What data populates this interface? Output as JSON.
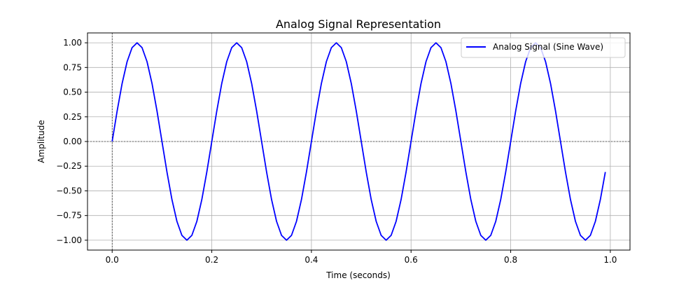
{
  "chart_data": {
    "type": "line",
    "title": "Analog Signal Representation",
    "xlabel": "Time (seconds)",
    "ylabel": "Amplitude",
    "xlim": [
      -0.0495,
      1.0395
    ],
    "ylim": [
      -1.1,
      1.1
    ],
    "x_ticks": [
      0.0,
      0.2,
      0.4,
      0.6,
      0.8,
      1.0
    ],
    "x_tick_labels": [
      "0.0",
      "0.2",
      "0.4",
      "0.6",
      "0.8",
      "1.0"
    ],
    "y_ticks": [
      -1.0,
      -0.75,
      -0.5,
      -0.25,
      0.0,
      0.25,
      0.5,
      0.75,
      1.0
    ],
    "y_tick_labels": [
      "−1.00",
      "−0.75",
      "−0.50",
      "−0.25",
      "0.00",
      "0.25",
      "0.50",
      "0.75",
      "1.00"
    ],
    "grid": true,
    "reference_lines": {
      "x": 0,
      "y": 0,
      "style": "dashed"
    },
    "legend_position": "top-right",
    "series": [
      {
        "name": "Analog Signal (Sine Wave)",
        "color": "#0000ff",
        "x": [
          0.0,
          0.01,
          0.02,
          0.03,
          0.04,
          0.05,
          0.06,
          0.07,
          0.08,
          0.09,
          0.1,
          0.11,
          0.12,
          0.13,
          0.14,
          0.15,
          0.16,
          0.17,
          0.18,
          0.19,
          0.2,
          0.21,
          0.22,
          0.23,
          0.24,
          0.25,
          0.26,
          0.27,
          0.28,
          0.29,
          0.3,
          0.31,
          0.32,
          0.33,
          0.34,
          0.35,
          0.36,
          0.37,
          0.38,
          0.39,
          0.4,
          0.41,
          0.42,
          0.43,
          0.44,
          0.45,
          0.46,
          0.47,
          0.48,
          0.49,
          0.5,
          0.51,
          0.52,
          0.53,
          0.54,
          0.55,
          0.56,
          0.57,
          0.58,
          0.59,
          0.6,
          0.61,
          0.62,
          0.63,
          0.64,
          0.65,
          0.66,
          0.67,
          0.68,
          0.69,
          0.7,
          0.71,
          0.72,
          0.73,
          0.74,
          0.75,
          0.76,
          0.77,
          0.78,
          0.79,
          0.8,
          0.81,
          0.82,
          0.83,
          0.84,
          0.85,
          0.86,
          0.87,
          0.88,
          0.89,
          0.9,
          0.91,
          0.92,
          0.93,
          0.94,
          0.95,
          0.96,
          0.97,
          0.98,
          0.99
        ],
        "y": [
          0.0,
          0.309,
          0.588,
          0.809,
          0.951,
          1.0,
          0.951,
          0.809,
          0.588,
          0.309,
          0.0,
          -0.309,
          -0.588,
          -0.809,
          -0.951,
          -1.0,
          -0.951,
          -0.809,
          -0.588,
          -0.309,
          0.0,
          0.309,
          0.588,
          0.809,
          0.951,
          1.0,
          0.951,
          0.809,
          0.588,
          0.309,
          0.0,
          -0.309,
          -0.588,
          -0.809,
          -0.951,
          -1.0,
          -0.951,
          -0.809,
          -0.588,
          -0.309,
          0.0,
          0.309,
          0.588,
          0.809,
          0.951,
          1.0,
          0.951,
          0.809,
          0.588,
          0.309,
          0.0,
          -0.309,
          -0.588,
          -0.809,
          -0.951,
          -1.0,
          -0.951,
          -0.809,
          -0.588,
          -0.309,
          0.0,
          0.309,
          0.588,
          0.809,
          0.951,
          1.0,
          0.951,
          0.809,
          0.588,
          0.309,
          0.0,
          -0.309,
          -0.588,
          -0.809,
          -0.951,
          -1.0,
          -0.951,
          -0.809,
          -0.588,
          -0.309,
          0.0,
          0.309,
          0.588,
          0.809,
          0.951,
          1.0,
          0.951,
          0.809,
          0.588,
          0.309,
          0.0,
          -0.309,
          -0.588,
          -0.809,
          -0.951,
          -1.0,
          -0.951,
          -0.809,
          -0.588,
          -0.309
        ]
      }
    ]
  }
}
